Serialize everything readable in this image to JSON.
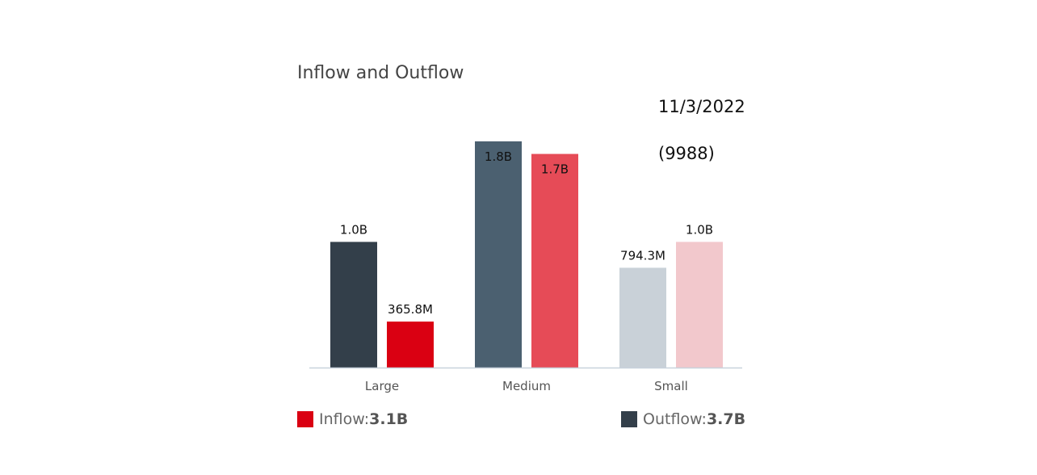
{
  "title": "Inflow and Outflow",
  "date": "11/3/2022",
  "code": "(9988)",
  "chart_data": {
    "type": "bar",
    "categories": [
      "Large",
      "Medium",
      "Small"
    ],
    "bars": [
      {
        "category": "Large",
        "direction": "Outflow",
        "value": 1.0,
        "label": "1.0B",
        "color": "#333F4A"
      },
      {
        "category": "Large",
        "direction": "Inflow",
        "value": 0.3658,
        "label": "365.8M",
        "color": "#DA0012"
      },
      {
        "category": "Medium",
        "direction": "Outflow",
        "value": 1.8,
        "label": "1.8B",
        "color": "#4B6070"
      },
      {
        "category": "Medium",
        "direction": "Inflow",
        "value": 1.7,
        "label": "1.7B",
        "color": "#E64B57"
      },
      {
        "category": "Small",
        "direction": "Outflow",
        "value": 0.7943,
        "label": "794.3M",
        "color": "#C9D1D8"
      },
      {
        "category": "Small",
        "direction": "Inflow",
        "value": 1.0,
        "label": "1.0B",
        "color": "#F2C8CC"
      }
    ],
    "ylim": [
      0,
      1.8
    ],
    "unit": "B"
  },
  "legend": [
    {
      "label": "Inflow:",
      "value": "3.1B",
      "color": "#DA0012"
    },
    {
      "label": "Outflow:",
      "value": "3.7B",
      "color": "#333F4A"
    }
  ]
}
